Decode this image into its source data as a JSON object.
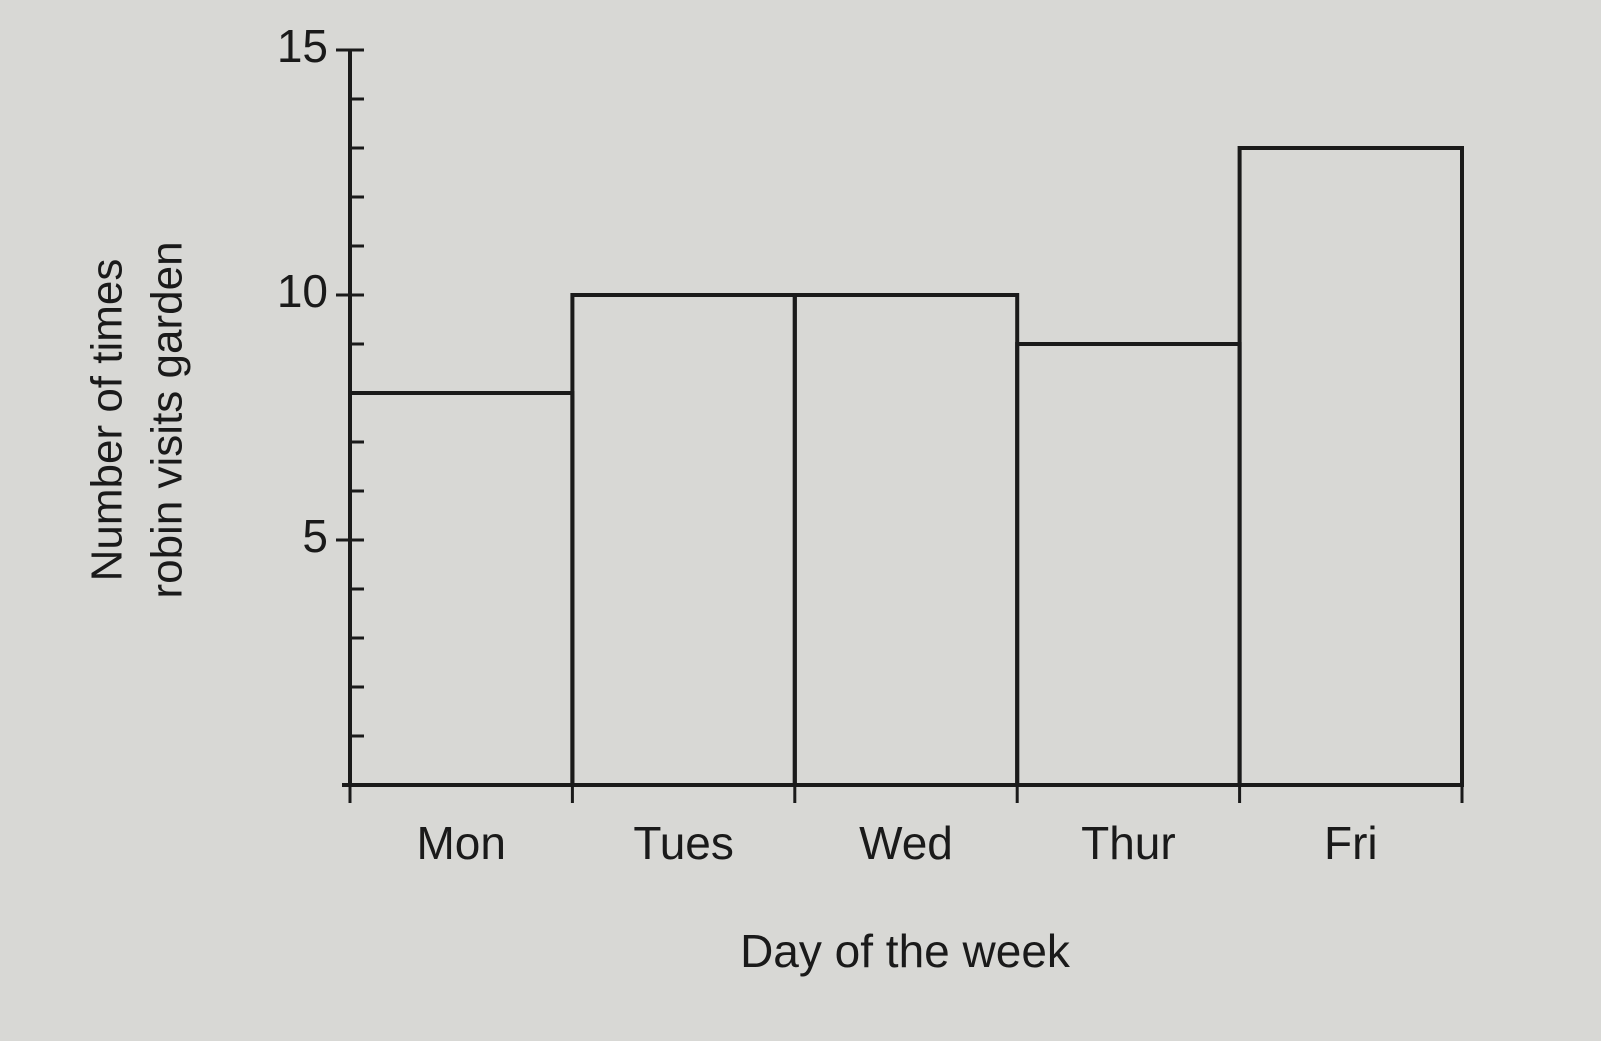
{
  "chart_data": {
    "type": "bar",
    "ylabel": [
      "Number of times",
      "robin visits garden"
    ],
    "xlabel": "Day of the week",
    "categories": [
      "Mon",
      "Tues",
      "Wed",
      "Thur",
      "Fri"
    ],
    "values": [
      8,
      10,
      10,
      9,
      13
    ],
    "color": "none",
    "edgecolor": "#1a1a1a",
    "ylim": [
      0,
      15
    ],
    "yticks": [
      5,
      10,
      15
    ],
    "yminorticks": [
      1,
      2,
      3,
      4,
      6,
      7,
      8,
      9,
      11,
      12,
      13,
      14
    ],
    "grid": false
  }
}
